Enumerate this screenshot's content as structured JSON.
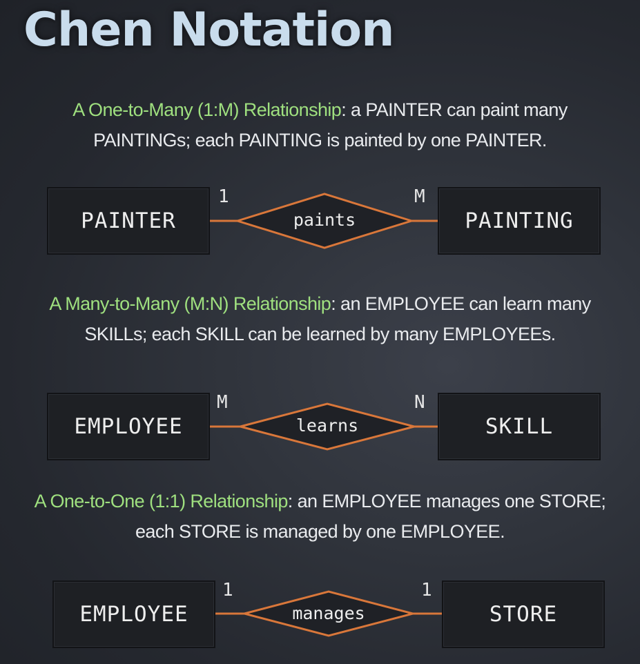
{
  "title": "Chen Notation",
  "sections": [
    {
      "heading": "A One-to-Many (1:M) Relationship",
      "line1_rest": ": a PAINTER can paint many",
      "line2": "PAINTINGs; each PAINTING is painted by one PAINTER.",
      "left_entity": "PAINTER",
      "right_entity": "PAINTING",
      "relationship": "paints",
      "left_cardinality": "1",
      "right_cardinality": "M"
    },
    {
      "heading": "A Many-to-Many (M:N) Relationship",
      "line1_rest": ": an EMPLOYEE can learn many",
      "line2": "SKILLs; each SKILL can be learned by many EMPLOYEEs.",
      "left_entity": "EMPLOYEE",
      "right_entity": "SKILL",
      "relationship": "learns",
      "left_cardinality": "M",
      "right_cardinality": "N"
    },
    {
      "heading": "A One-to-One (1:1) Relationship",
      "line1_rest": ": an EMPLOYEE manages one STORE;",
      "line2": "each STORE is managed by one EMPLOYEE.",
      "left_entity": "EMPLOYEE",
      "right_entity": "STORE",
      "relationship": "manages",
      "left_cardinality": "1",
      "right_cardinality": "1"
    }
  ],
  "colors": {
    "heading_green": "#9fe07f",
    "connector_orange": "#d9773a",
    "title": "#c9dcec"
  }
}
